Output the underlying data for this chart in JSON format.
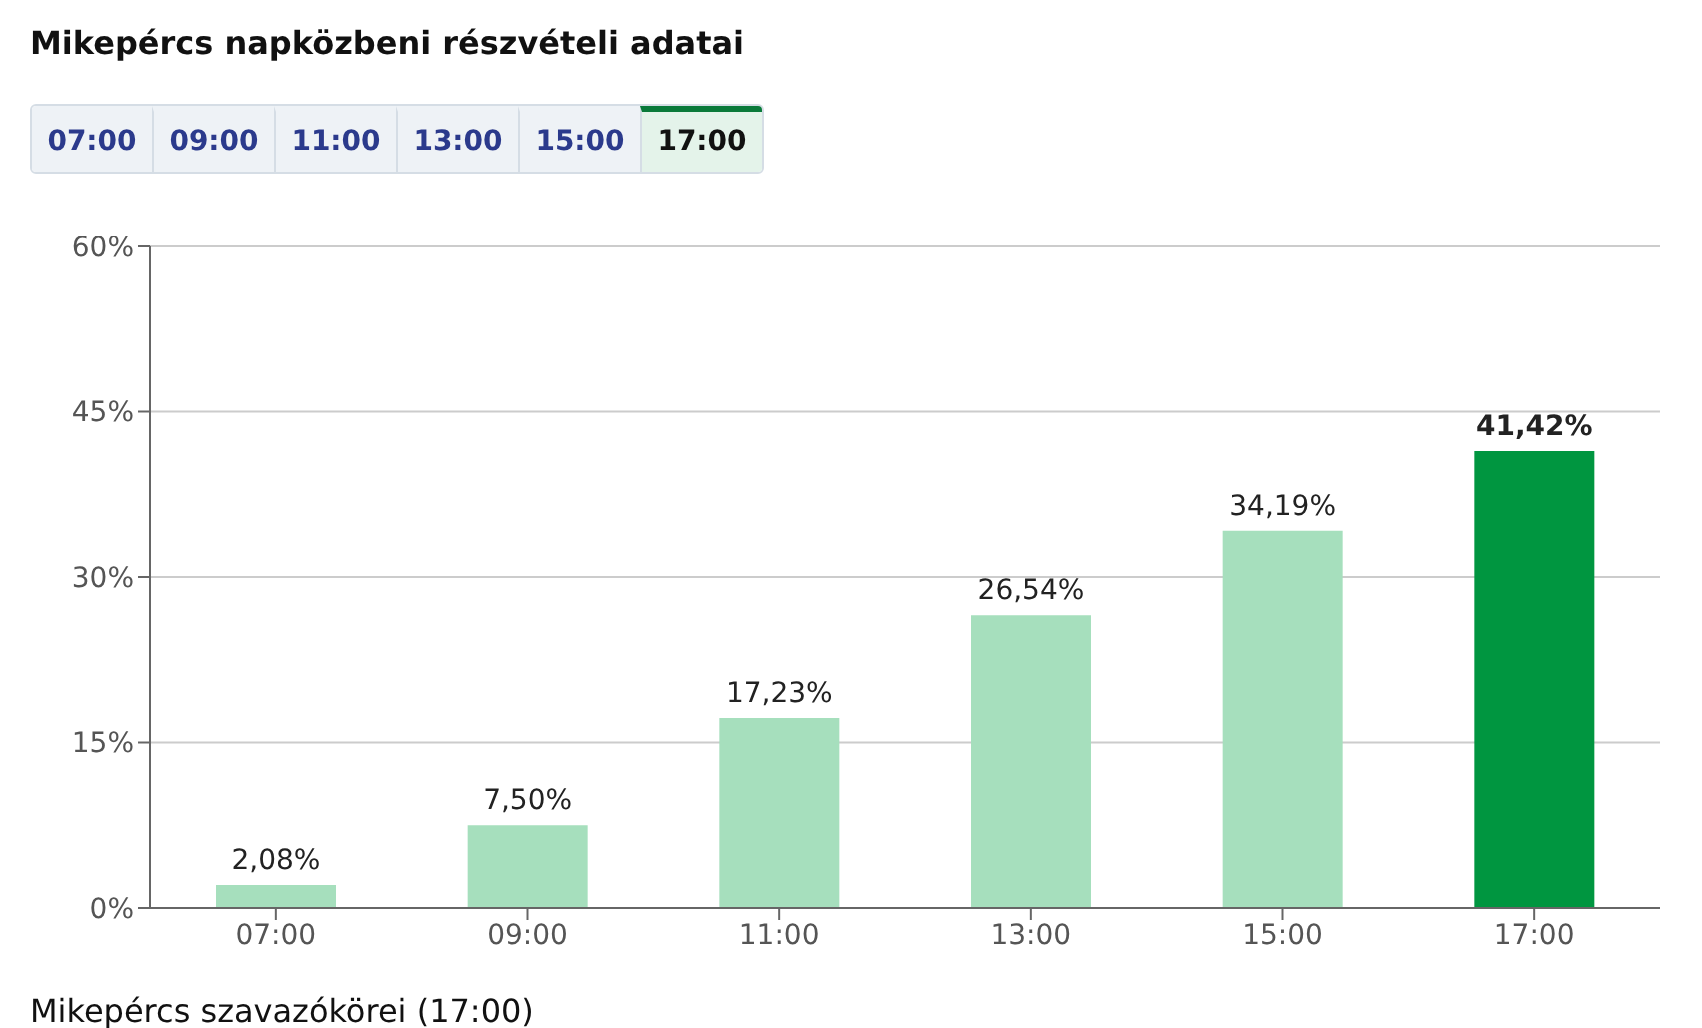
{
  "chart_data": {
    "type": "bar",
    "title": "Mikepércs napközbeni részvételi adatai",
    "categories": [
      "07:00",
      "09:00",
      "11:00",
      "13:00",
      "15:00",
      "17:00"
    ],
    "values": [
      2.08,
      7.5,
      17.23,
      26.54,
      34.19,
      41.42
    ],
    "colors": [
      "#a6dfbd",
      "#a6dfbd",
      "#a6dfbd",
      "#a6dfbd",
      "#a6dfbd",
      "#009640"
    ],
    "value_labels": [
      "2,08%",
      "7,50%",
      "17,23%",
      "26,54%",
      "34,19%",
      "41,42%"
    ],
    "ylim": [
      0,
      60
    ],
    "yticks": [
      {
        "value": 0,
        "label": "0%"
      },
      {
        "value": 15,
        "label": "15%"
      },
      {
        "value": 30,
        "label": "30%"
      },
      {
        "value": 45,
        "label": "45%"
      },
      {
        "value": 60,
        "label": "60%"
      }
    ],
    "grid": "y",
    "annotations": [
      "Mikepércs szavazókörei (17:00)"
    ]
  }
}
